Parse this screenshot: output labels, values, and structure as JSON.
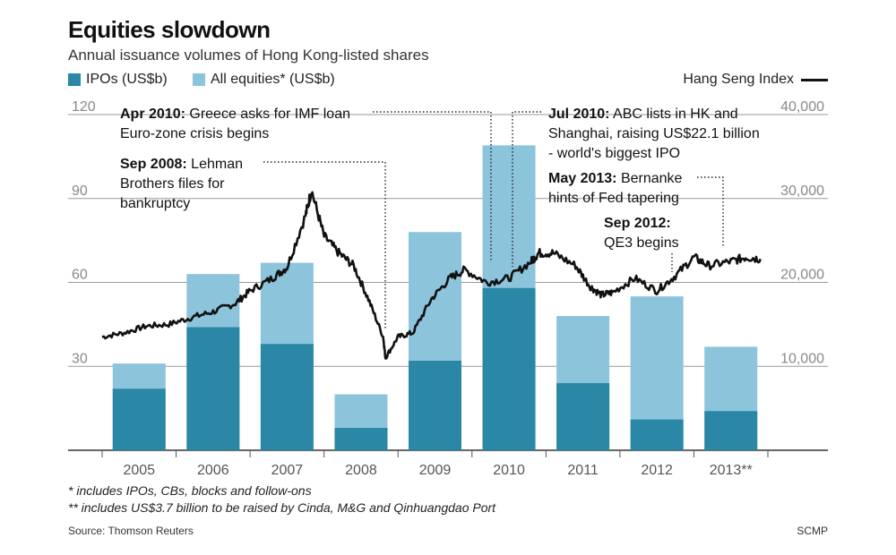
{
  "header": {
    "title": "Equities slowdown",
    "subtitle": "Annual issuance volumes of Hong Kong-listed shares"
  },
  "legend": {
    "ipo_label": "IPOs (US$b)",
    "all_label": "All equities* (US$b)",
    "hsi_label": "Hang Seng Index"
  },
  "footnotes": {
    "note1": "* includes IPOs, CBs, blocks and follow-ons",
    "note2": "** includes US$3.7 billion to be raised by Cinda, M&G and Qinhuangdao Port"
  },
  "source": "Source: Thomson Reuters",
  "credit": "SCMP",
  "colors": {
    "ipo": "#2b87a6",
    "all": "#8cc4dc",
    "hsi": "#111111",
    "grid": "#777777"
  },
  "chart_data": {
    "type": "bar",
    "categories": [
      "2005",
      "2006",
      "2007",
      "2008",
      "2009",
      "2010",
      "2011",
      "2012",
      "2013**"
    ],
    "series": [
      {
        "name": "IPOs (US$b)",
        "values": [
          22,
          44,
          38,
          8,
          32,
          58,
          24,
          11,
          14
        ]
      },
      {
        "name": "All equities* (US$b)",
        "values": [
          31,
          63,
          67,
          20,
          78,
          109,
          48,
          55,
          37
        ]
      }
    ],
    "ylim_left": [
      0,
      120
    ],
    "yticks_left": [
      "30",
      "60",
      "90",
      "120"
    ],
    "ytick_values_left": [
      30,
      60,
      90,
      120
    ],
    "ylim_right": [
      0,
      40000
    ],
    "yticks_right": [
      "10,000",
      "20,000",
      "30,000",
      "40,000"
    ],
    "ytick_values_right": [
      10000,
      20000,
      30000,
      40000
    ],
    "line_series": {
      "name": "Hang Seng Index",
      "x": [
        2005.0,
        2005.3,
        2005.6,
        2005.9,
        2006.2,
        2006.5,
        2006.8,
        2007.0,
        2007.3,
        2007.5,
        2007.75,
        2007.83,
        2008.0,
        2008.2,
        2008.4,
        2008.6,
        2008.8,
        2008.83,
        2009.0,
        2009.2,
        2009.45,
        2009.7,
        2009.9,
        2010.2,
        2010.5,
        2010.8,
        2010.9,
        2011.1,
        2011.4,
        2011.6,
        2011.75,
        2011.9,
        2012.2,
        2012.5,
        2012.75,
        2013.0,
        2013.2,
        2013.5,
        2013.7,
        2013.9
      ],
      "y": [
        13500,
        14000,
        14800,
        15000,
        15800,
        16500,
        17500,
        19000,
        20500,
        21800,
        28000,
        31000,
        25500,
        23500,
        22000,
        18000,
        13500,
        11000,
        13500,
        14000,
        18000,
        20500,
        21500,
        20000,
        20500,
        22500,
        23500,
        23500,
        22000,
        19500,
        18500,
        18800,
        20500,
        19000,
        20800,
        23000,
        22000,
        22500,
        23000,
        22800
      ]
    },
    "annotations": [
      {
        "bold": "Apr 2010:",
        "rest": "Greece asks for IMF loan",
        "line2": "Euro-zone crisis begins",
        "x": 2010.3
      },
      {
        "bold": "Sep 2008:",
        "rest": "Lehman",
        "line2": "Brothers files for",
        "line3": "bankruptcy",
        "x": 2008.7
      },
      {
        "bold": "Jul 2010:",
        "rest": "ABC lists in HK and",
        "line2": "Shanghai, raising US$22.1 billion",
        "line3": "- world's biggest IPO",
        "x": 2010.55
      },
      {
        "bold": "May 2013:",
        "rest": "Bernanke",
        "line2": "hints of Fed tapering",
        "x": 2013.35
      },
      {
        "bold": "Sep 2012:",
        "rest": "",
        "line2": "QE3 begins",
        "x": 2012.7
      }
    ]
  }
}
